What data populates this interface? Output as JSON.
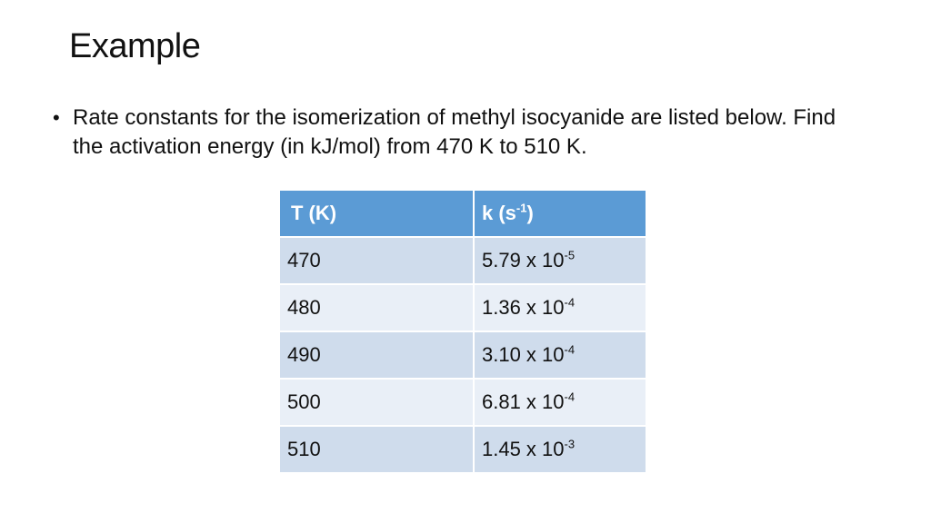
{
  "slide": {
    "title": "Example",
    "bullets": [
      "Rate constants for the isomerization of methyl isocyanide are listed below.  Find the activation energy (in kJ/mol) from 470 K to 510 K."
    ]
  },
  "table": {
    "headers": {
      "temperature": "T (K)",
      "rate_base": "k (s",
      "rate_exp": "-1",
      "rate_close": ")"
    },
    "rows": [
      {
        "t": "470",
        "k_base": "5.79 x 10",
        "k_exp": "-5"
      },
      {
        "t": "480",
        "k_base": "1.36 x 10",
        "k_exp": "-4"
      },
      {
        "t": "490",
        "k_base": "3.10 x 10",
        "k_exp": "-4"
      },
      {
        "t": "500",
        "k_base": "6.81 x 10",
        "k_exp": "-4"
      },
      {
        "t": "510",
        "k_base": "1.45 x 10",
        "k_exp": "-3"
      }
    ]
  },
  "colors": {
    "header": "#5b9bd5",
    "row_dark": "#cfdcec",
    "row_light": "#e9eff7"
  }
}
